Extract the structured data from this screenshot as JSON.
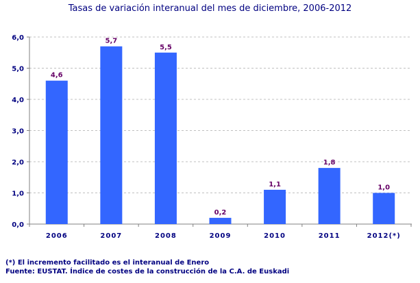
{
  "chart_data": {
    "type": "bar",
    "title": "Tasas de variación interanual del mes de diciembre, 2006-2012",
    "categories": [
      "2006",
      "2007",
      "2008",
      "2009",
      "2010",
      "2011",
      "2012(*)"
    ],
    "values": [
      4.6,
      5.7,
      5.5,
      0.2,
      1.1,
      1.8,
      1.0
    ],
    "data_labels": [
      "4,6",
      "5,7",
      "5,5",
      "0,2",
      "1,1",
      "1,8",
      "1,0"
    ],
    "y_ticks": [
      "0,0",
      "1,0",
      "2,0",
      "3,0",
      "4,0",
      "5,0",
      "6,0"
    ],
    "ylim": [
      0,
      6
    ],
    "xlabel": "",
    "ylabel": "",
    "grid": true,
    "bar_color": "#3366FF",
    "label_color": "#660066",
    "axis_text_color": "#000080"
  },
  "notes": [
    "(*) El incremento facilitado es el interanual de Enero",
    "Fuente: EUSTAT. Índice de costes de la construcción de la C.A. de Euskadi"
  ]
}
